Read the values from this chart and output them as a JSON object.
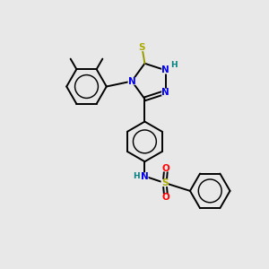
{
  "bg_color": "#e8e8e8",
  "fig_size": [
    3.0,
    3.0
  ],
  "dpi": 100,
  "atom_colors": {
    "N": "#0000ee",
    "S_thiol": "#aaaa00",
    "S_sulfone": "#aaaa00",
    "O": "#ff0000",
    "H": "#008080"
  },
  "bond_color": "#000000",
  "bond_lw": 1.4
}
